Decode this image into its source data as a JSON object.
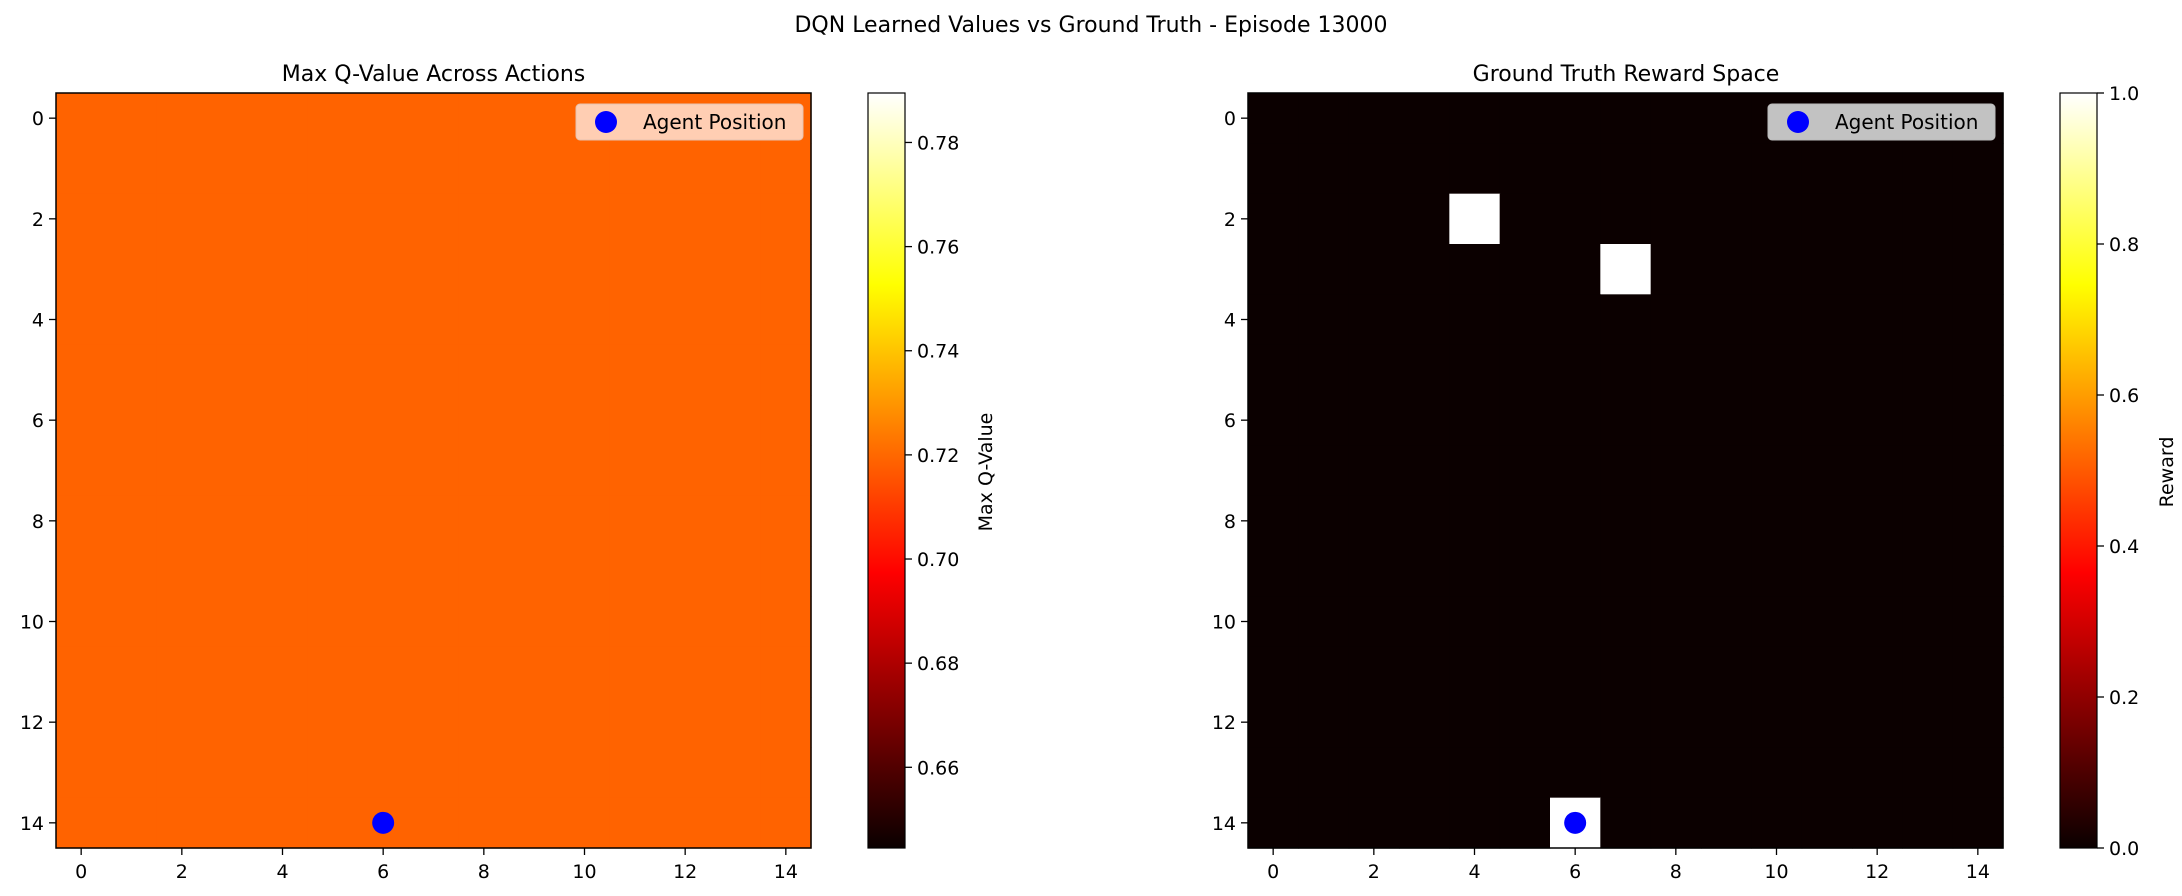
{
  "figure_title": "DQN Learned Values vs Ground Truth - Episode 13000",
  "chart_data": [
    {
      "type": "heatmap",
      "title": "Max Q-Value Across Actions",
      "grid_size": [
        15,
        15
      ],
      "x_ticks": [
        0,
        2,
        4,
        6,
        8,
        10,
        12,
        14
      ],
      "y_ticks": [
        0,
        2,
        4,
        6,
        8,
        10,
        12,
        14
      ],
      "x_range": [
        -0.5,
        14.5
      ],
      "y_range": [
        14.5,
        -0.5
      ],
      "uniform_value": 0.7188,
      "colormap": "hot",
      "colorbar": {
        "label": "Max Q-Value",
        "range": [
          0.6445,
          0.7895
        ],
        "ticks": [
          "0.66",
          "0.68",
          "0.70",
          "0.72",
          "0.74",
          "0.76",
          "0.78"
        ]
      },
      "agent": {
        "row": 14,
        "col": 6,
        "color": "#0000ff"
      },
      "legend": {
        "label": "Agent Position",
        "placement": "upper right"
      }
    },
    {
      "type": "heatmap",
      "title": "Ground Truth Reward Space",
      "grid_size": [
        15,
        15
      ],
      "x_ticks": [
        0,
        2,
        4,
        6,
        8,
        10,
        12,
        14
      ],
      "y_ticks": [
        0,
        2,
        4,
        6,
        8,
        10,
        12,
        14
      ],
      "x_range": [
        -0.5,
        14.5
      ],
      "y_range": [
        14.5,
        -0.5
      ],
      "background_value": 0.0,
      "colormap": "hot",
      "reward_cells": [
        {
          "row": 2,
          "col": 4,
          "value": 1.0
        },
        {
          "row": 3,
          "col": 7,
          "value": 1.0
        },
        {
          "row": 14,
          "col": 6,
          "value": 1.0
        }
      ],
      "colorbar": {
        "label": "Reward",
        "range": [
          0.0,
          1.0
        ],
        "ticks": [
          "0.0",
          "0.2",
          "0.4",
          "0.6",
          "0.8",
          "1.0"
        ]
      },
      "agent": {
        "row": 14,
        "col": 6,
        "color": "#0000ff"
      },
      "legend": {
        "label": "Agent Position",
        "placement": "upper right"
      }
    }
  ]
}
